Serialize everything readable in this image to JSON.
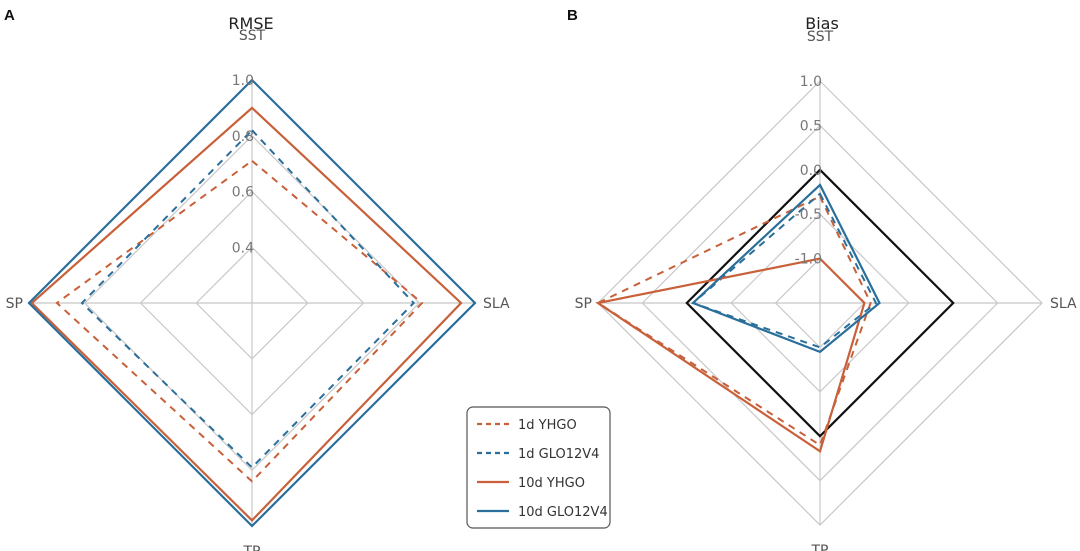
{
  "chart_data": [
    {
      "panel": "A",
      "type": "radar",
      "title": "RMSE",
      "axes": [
        "SST",
        "SLA",
        "TP",
        "SP"
      ],
      "range": [
        0.2,
        1.0
      ],
      "ticks": [
        0.4,
        0.6,
        0.8,
        1.0
      ],
      "tick_labels": [
        "0.4",
        "0.6",
        "0.8",
        "1.0"
      ],
      "grid_levels": [
        0.4,
        0.6,
        0.8,
        1.0
      ],
      "grid": true,
      "series": [
        {
          "name": "1d YHGO",
          "color": "#c8603a",
          "dashed": true,
          "values": [
            0.71,
            0.81,
            0.84,
            0.9
          ]
        },
        {
          "name": "1d GLO12V4",
          "color": "#2a6f9b",
          "dashed": true,
          "values": [
            0.82,
            0.78,
            0.79,
            0.81
          ]
        },
        {
          "name": "10d YHGO",
          "color": "#c8603a",
          "dashed": false,
          "values": [
            0.9,
            0.95,
            0.98,
            0.99
          ]
        },
        {
          "name": "10d GLO12V4",
          "color": "#2a6f9b",
          "dashed": false,
          "values": [
            1.0,
            1.0,
            1.0,
            1.0
          ]
        }
      ]
    },
    {
      "panel": "B",
      "type": "radar",
      "title": "Bias",
      "axes": [
        "SST",
        "SLA",
        "TP",
        "SP"
      ],
      "range": [
        -1.5,
        1.0
      ],
      "ticks": [
        -1.0,
        -0.5,
        0.0,
        0.5,
        1.0
      ],
      "tick_labels": [
        "-1.0",
        "-0.5",
        "0.0",
        "0.5",
        "1.0"
      ],
      "grid_levels": [
        -1.0,
        -0.5,
        0.0,
        0.5,
        1.0
      ],
      "grid": true,
      "reference": {
        "name": "zero",
        "color": "#111111",
        "values": [
          0.0,
          0.0,
          0.0,
          0.0
        ]
      },
      "series": [
        {
          "name": "1d YHGO",
          "color": "#c8603a",
          "dashed": true,
          "values": [
            -0.3,
            -0.93,
            0.1,
            1.0
          ]
        },
        {
          "name": "1d GLO12V4",
          "color": "#2a6f9b",
          "dashed": true,
          "values": [
            -0.27,
            -0.87,
            -1.0,
            -0.07
          ]
        },
        {
          "name": "10d YHGO",
          "color": "#c8603a",
          "dashed": false,
          "values": [
            -1.0,
            -1.0,
            0.17,
            1.0
          ]
        },
        {
          "name": "10d GLO12V4",
          "color": "#2a6f9b",
          "dashed": false,
          "values": [
            -0.17,
            -0.83,
            -0.95,
            -0.07
          ]
        }
      ]
    }
  ],
  "legend": {
    "placement": "bottom-center",
    "entries": [
      {
        "label": "1d YHGO",
        "color": "#c8603a",
        "dashed": true
      },
      {
        "label": "1d GLO12V4",
        "color": "#2a6f9b",
        "dashed": true
      },
      {
        "label": "10d YHGO",
        "color": "#c8603a",
        "dashed": false
      },
      {
        "label": "10d GLO12V4",
        "color": "#2a6f9b",
        "dashed": false
      }
    ]
  }
}
